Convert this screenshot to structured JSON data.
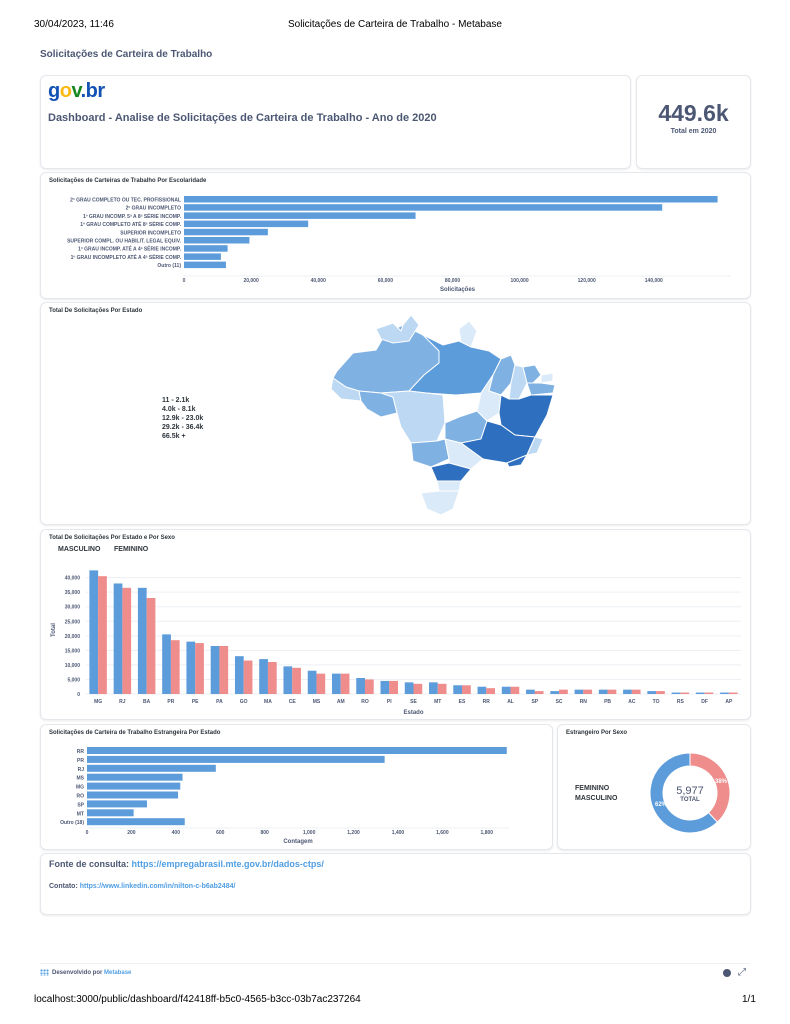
{
  "print_header": {
    "datetime": "30/04/2023, 11:46",
    "title": "Solicitações de Carteira de Trabalho - Metabase"
  },
  "print_footer": {
    "url": "localhost:3000/public/dashboard/f42418ff-b5c0-4565-b3cc-03b7ac237264",
    "page": "1/1"
  },
  "page_title": "Solicitações de Carteira de Trabalho",
  "logo": {
    "p1": "g",
    "p2": "o",
    "p3": "v",
    "p4": ".br"
  },
  "dashboard_title": "Dashboard - Analise de Solicitações de Carteira de Trabalho - Ano de 2020",
  "kpi": {
    "value": "449.6k",
    "label": "Total em 2020"
  },
  "colors": {
    "blue": "#5d9cdb",
    "pink": "#ef8c8c",
    "axis": "#4c5773",
    "grid": "#eceff3"
  },
  "escolaridade": {
    "title": "Solicitações de Carteiras de Trabalho Por Escolaridade",
    "xlabel": "Solicitações",
    "ticks": [
      "0",
      "20,000",
      "40,000",
      "60,000",
      "80,000",
      "100,000",
      "120,000",
      "140,000"
    ]
  },
  "mapa": {
    "title": "Total De Solicitações Por Estado",
    "legend": [
      "11 - 2.1k",
      "4.0k - 8.1k",
      "12.9k - 23.0k",
      "29.2k - 36.4k",
      "66.5k +"
    ]
  },
  "sexo_estado": {
    "title": "Total De Solicitações Por Estado e Por Sexo",
    "legend": [
      "MASCULINO",
      "FEMININO"
    ],
    "xlabel": "Estado",
    "ylabel": "Total",
    "ticks": [
      "0",
      "5,000",
      "10,000",
      "15,000",
      "20,000",
      "25,000",
      "30,000",
      "35,000",
      "40,000"
    ]
  },
  "estrangeira": {
    "title": "Solicitações de Carteira de Trabalho Estrangeira Por Estado",
    "xlabel": "Contagem",
    "ticks": [
      "0",
      "200",
      "400",
      "600",
      "800",
      "1,000",
      "1,200",
      "1,400",
      "1,600",
      "1,800"
    ]
  },
  "estrangeiro_sexo": {
    "title": "Estrangeiro Por Sexo",
    "legend": [
      "FEMININO",
      "MASCULINO"
    ],
    "total": "5,977",
    "total_label": "TOTAL",
    "pct_fem": "38%",
    "pct_masc": "62%"
  },
  "fonte": {
    "label": "Fonte de consulta: ",
    "link": "https://empregabrasil.mte.gov.br/dados-ctps/",
    "contato_label": "Contato: ",
    "contato_link": "https://www.linkedin.com/in/nilton-c-b6ab2484/"
  },
  "footer": {
    "prefix": "Desenvolvido por ",
    "brand": "Metabase"
  },
  "chart_data": [
    {
      "type": "bar",
      "title": "Solicitações de Carteiras de Trabalho Por Escolaridade",
      "xlabel": "Solicitações",
      "orientation": "horizontal",
      "categories": [
        "2º GRAU COMPLETO OU TEC. PROFISSIONAL",
        "2º GRAU INCOMPLETO",
        "1º GRAU INCOMP. 5ª A 8ª SÉRIE INCOMP.",
        "1º GRAU COMPLETO ATÉ 8ª SÉRIE COMP.",
        "SUPERIOR INCOMPLETO",
        "SUPERIOR COMPL. OU HABILIT. LEGAL EQUIV.",
        "1º GRAU INCOMP. ATÉ A 4ª SÉRIE INCOMP.",
        "1º GRAU INCOMPLETO ATÉ A 4ª SÉRIE COMP.",
        "Outro (11)"
      ],
      "values": [
        159000,
        142500,
        69000,
        37000,
        25000,
        19500,
        13000,
        11000,
        12500
      ],
      "xlim": [
        0,
        163000
      ]
    },
    {
      "type": "bar",
      "title": "Total De Solicitações Por Estado e Por Sexo",
      "xlabel": "Estado",
      "ylabel": "Total",
      "categories": [
        "MG",
        "RJ",
        "BA",
        "PR",
        "PE",
        "PA",
        "GO",
        "MA",
        "CE",
        "MS",
        "AM",
        "RO",
        "PI",
        "SE",
        "MT",
        "ES",
        "RR",
        "AL",
        "SP",
        "SC",
        "RN",
        "PB",
        "AC",
        "TO",
        "RS",
        "DF",
        "AP"
      ],
      "series": [
        {
          "name": "MASCULINO",
          "values": [
            42500,
            38000,
            36500,
            20500,
            18000,
            16500,
            13000,
            12000,
            9500,
            8000,
            7000,
            5500,
            4500,
            4000,
            4000,
            3000,
            2500,
            2500,
            1500,
            1000,
            1500,
            1500,
            1500,
            1000,
            500,
            500,
            500
          ]
        },
        {
          "name": "FEMININO",
          "values": [
            40500,
            36500,
            33000,
            18500,
            17500,
            16500,
            11500,
            11000,
            9000,
            7000,
            7000,
            5000,
            4500,
            3500,
            3500,
            3000,
            2000,
            2500,
            1000,
            1500,
            1500,
            1500,
            1500,
            1000,
            500,
            500,
            500
          ]
        }
      ],
      "ylim": [
        0,
        44000
      ]
    },
    {
      "type": "bar",
      "title": "Solicitações de Carteira de Trabalho Estrangeira Por Estado",
      "xlabel": "Contagem",
      "orientation": "horizontal",
      "categories": [
        "RR",
        "PR",
        "RJ",
        "MS",
        "MG",
        "RO",
        "SP",
        "MT",
        "Outro (18)"
      ],
      "values": [
        1890,
        1340,
        580,
        430,
        420,
        410,
        270,
        210,
        440
      ],
      "xlim": [
        0,
        1900
      ]
    },
    {
      "type": "pie",
      "title": "Estrangeiro Por Sexo",
      "categories": [
        "FEMININO",
        "MASCULINO"
      ],
      "values": [
        38,
        62
      ],
      "total": 5977
    }
  ]
}
